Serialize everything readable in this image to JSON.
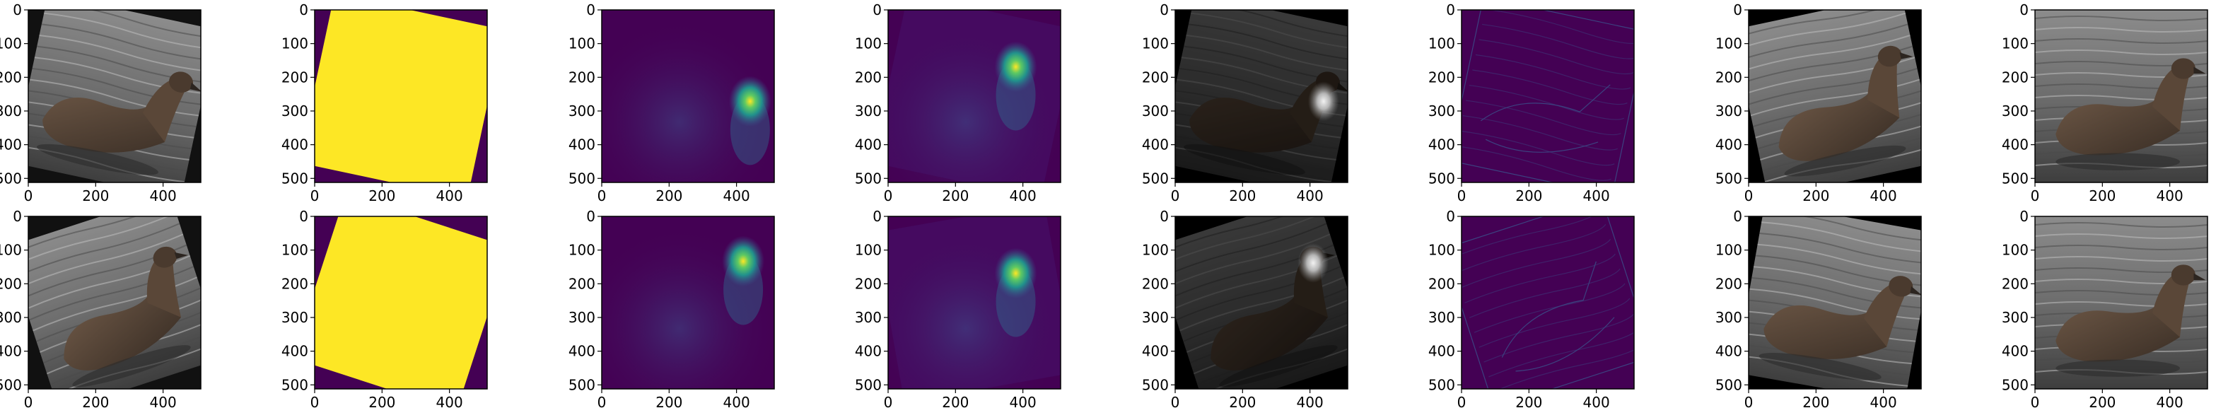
{
  "figure": {
    "grid": {
      "rows": 2,
      "cols": 8
    },
    "x_ticks": [
      "0",
      "200",
      "400"
    ],
    "y_ticks": [
      "0",
      "100",
      "200",
      "300",
      "400",
      "500"
    ],
    "colors": {
      "viridis_dark": "#440154",
      "viridis_mid": "#31688e",
      "viridis_bright": "#fde725",
      "background": "#ffffff",
      "black": "#000000"
    },
    "rows": [
      {
        "panels": [
          {
            "kind": "photo-rotated",
            "angle": 12,
            "fill": "#111111"
          },
          {
            "kind": "mask",
            "angle": 12
          },
          {
            "kind": "heatmap",
            "hot_x": 0.86,
            "hot_y": 0.53
          },
          {
            "kind": "heatmap",
            "hot_x": 0.74,
            "hot_y": 0.33,
            "angle": 12
          },
          {
            "kind": "gray-overlay",
            "hot_x": 0.86,
            "hot_y": 0.53,
            "angle": 12
          },
          {
            "kind": "edges",
            "angle": 12
          },
          {
            "kind": "photo-rotated",
            "angle": -12,
            "fill": "#000000"
          },
          {
            "kind": "photo"
          }
        ]
      },
      {
        "panels": [
          {
            "kind": "photo-rotated",
            "angle": -18,
            "fill": "#111111"
          },
          {
            "kind": "mask",
            "angle": 18
          },
          {
            "kind": "heatmap",
            "hot_x": 0.82,
            "hot_y": 0.26
          },
          {
            "kind": "heatmap",
            "hot_x": 0.74,
            "hot_y": 0.33,
            "angle": -10
          },
          {
            "kind": "gray-overlay",
            "hot_x": 0.8,
            "hot_y": 0.27,
            "angle": -18
          },
          {
            "kind": "edges",
            "angle": -18
          },
          {
            "kind": "photo-rotated",
            "angle": 10,
            "fill": "#000000"
          },
          {
            "kind": "photo"
          }
        ]
      }
    ]
  }
}
